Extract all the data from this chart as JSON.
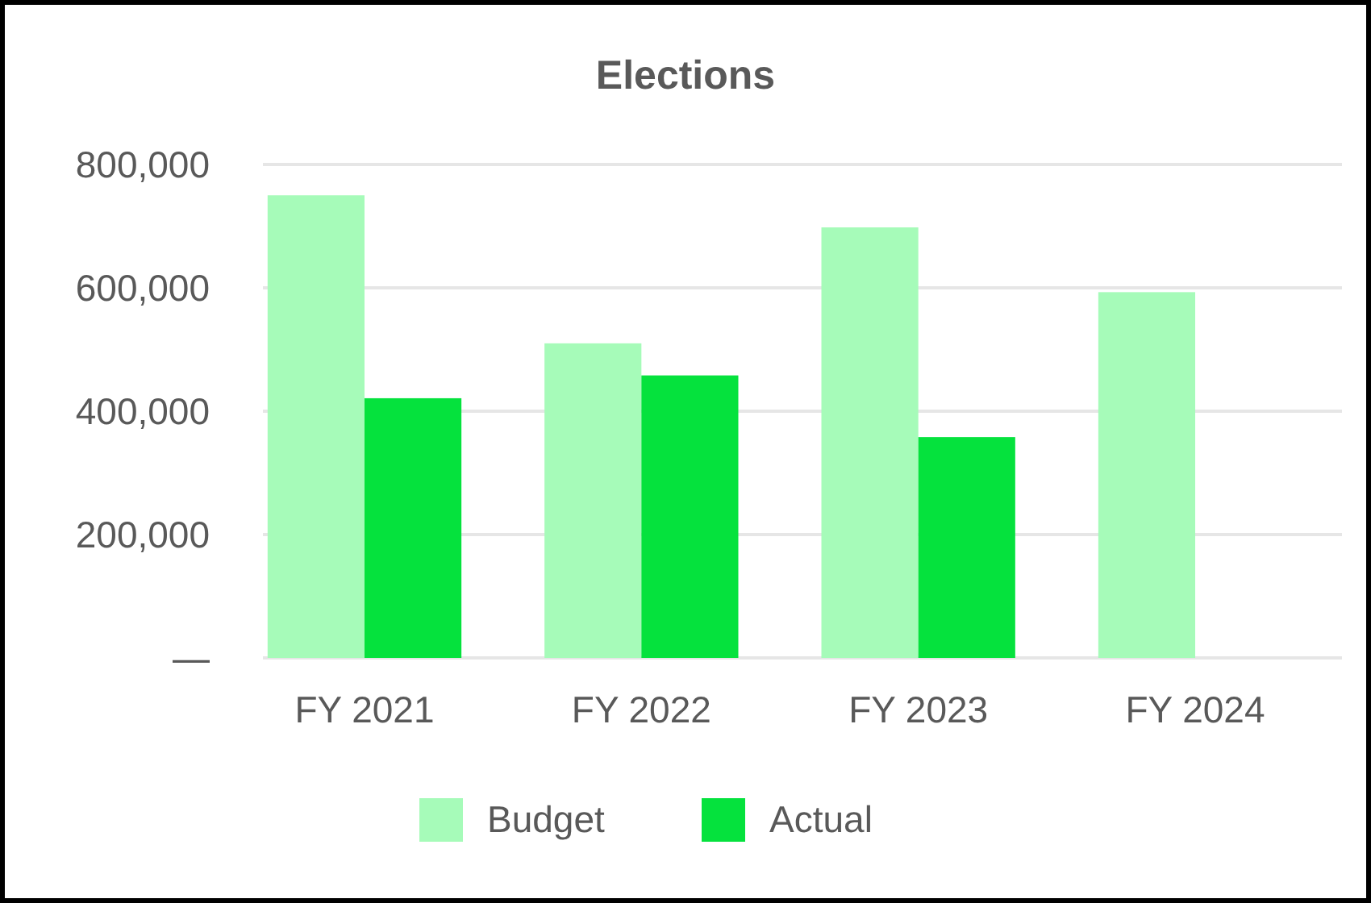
{
  "chart_data": {
    "type": "bar",
    "title": "Elections",
    "categories": [
      "FY 2021",
      "FY 2022",
      "FY 2023",
      "FY 2024"
    ],
    "series": [
      {
        "name": "Budget",
        "color": "#a6fbb9",
        "values": [
          750000,
          510000,
          698000,
          593000
        ]
      },
      {
        "name": "Actual",
        "color": "#05e23d",
        "values": [
          421000,
          458000,
          358000,
          null
        ]
      }
    ],
    "ylim": [
      0,
      800000
    ],
    "yticks": [
      {
        "value": 0,
        "label": "—"
      },
      {
        "value": 200000,
        "label": "200,000"
      },
      {
        "value": 400000,
        "label": "400,000"
      },
      {
        "value": 600000,
        "label": "600,000"
      },
      {
        "value": 800000,
        "label": "800,000"
      }
    ],
    "grid": "y",
    "legend": "bottom"
  }
}
